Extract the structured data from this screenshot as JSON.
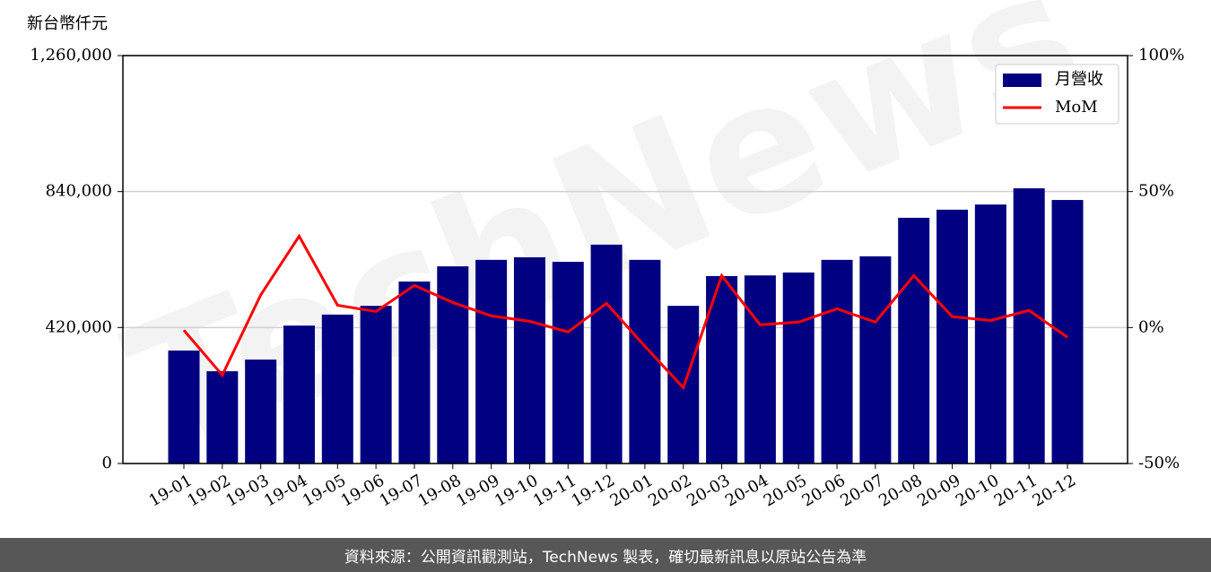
{
  "chart_data": {
    "type": "bar-line",
    "y_label": "新台幣仟元",
    "watermark": "TechNews",
    "categories": [
      "19-01",
      "19-02",
      "19-03",
      "19-04",
      "19-05",
      "19-06",
      "19-07",
      "19-08",
      "19-09",
      "19-10",
      "19-11",
      "19-12",
      "20-01",
      "20-02",
      "20-03",
      "20-04",
      "20-05",
      "20-06",
      "20-07",
      "20-08",
      "20-09",
      "20-10",
      "20-11",
      "20-12"
    ],
    "series": [
      {
        "name": "月營收",
        "type": "bar",
        "color": "#000080",
        "values": [
          349000,
          285000,
          321000,
          426000,
          460000,
          487000,
          562000,
          609000,
          629000,
          637000,
          623000,
          676000,
          629000,
          487000,
          579000,
          581000,
          590000,
          629000,
          640000,
          759000,
          784000,
          800000,
          850000,
          814000
        ]
      },
      {
        "name": "MoM",
        "type": "line",
        "axis": "y2",
        "color": "#ff0000",
        "values": [
          -1,
          -17.5,
          12,
          33.6,
          8.2,
          5.9,
          15.5,
          9.2,
          4.3,
          2.3,
          -1.6,
          8.9,
          -6.9,
          -22.1,
          19.1,
          1,
          2,
          6.9,
          2,
          19.1,
          4,
          2.6,
          6.3,
          -3.6
        ]
      }
    ],
    "ylim": [
      0,
      1260000
    ],
    "yticks": [
      0,
      {
        "value": 420000,
        "label": "420,000"
      },
      {
        "value": 840000,
        "label": "840,000"
      },
      {
        "value": 1260000,
        "label": "1,260,000"
      }
    ],
    "y2lim": [
      -50,
      100
    ],
    "y2ticks": [
      {
        "value": -50,
        "label": "-50%"
      },
      {
        "value": 0,
        "label": "0%"
      },
      {
        "value": 50,
        "label": "50%"
      },
      {
        "value": 100,
        "label": "100%"
      }
    ],
    "grid": true,
    "legend": "upper right",
    "source": "資料來源：公開資訊觀測站，TechNews 製表，確切最新訊息以原站公告為準"
  }
}
